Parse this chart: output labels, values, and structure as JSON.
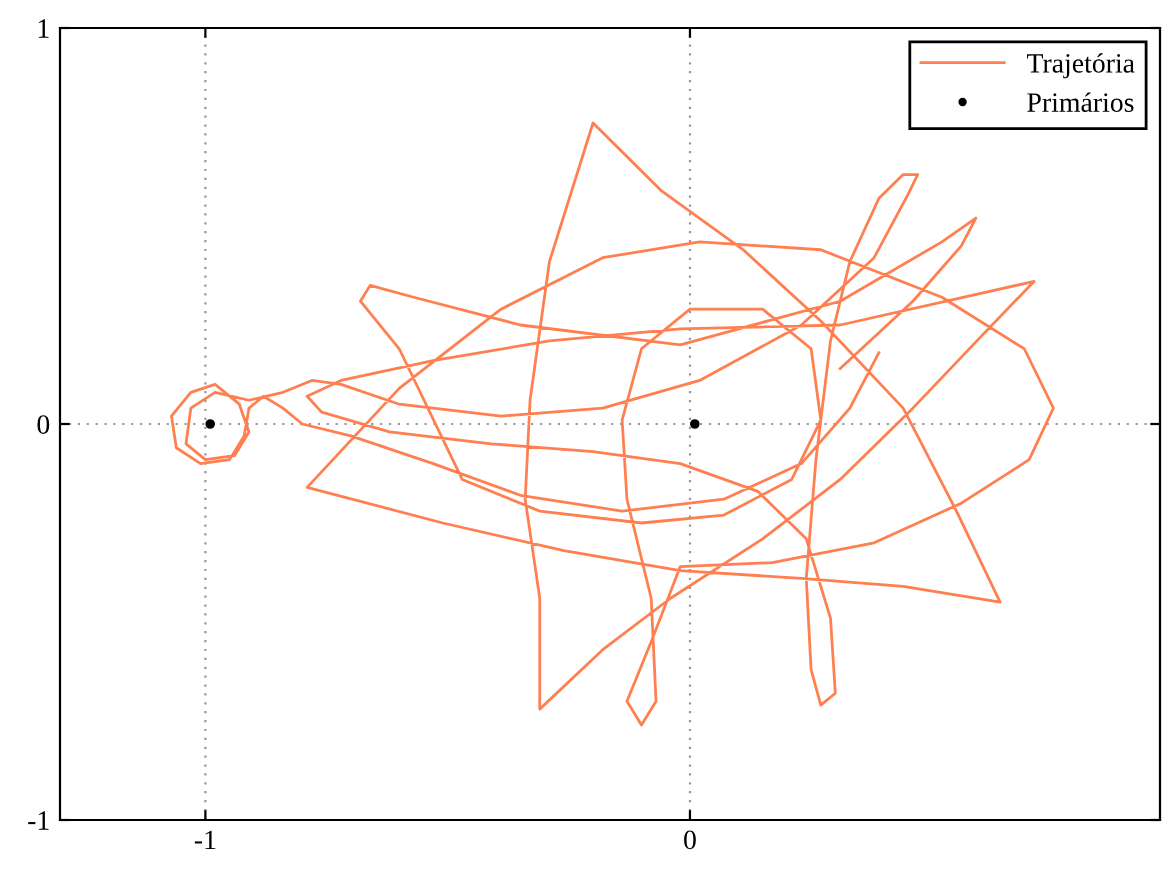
{
  "chart_data": {
    "type": "line",
    "xlim": [
      -1.3,
      0.97
    ],
    "ylim": [
      -1,
      1
    ],
    "xticks": [
      -1,
      0
    ],
    "yticks": [
      -1,
      0,
      1
    ],
    "grid": true,
    "legend": "top right",
    "series": [
      {
        "name": "Trajetória",
        "color": "#ff7f50",
        "marker": "none",
        "x": [
          0.39,
          0.33,
          0.23,
          0.07,
          -0.14,
          -0.35,
          -0.53,
          -0.7,
          -0.8,
          -0.84,
          -0.88,
          -0.91,
          -0.92,
          -0.95,
          -1.01,
          -1.06,
          -1.07,
          -1.03,
          -0.98,
          -0.93,
          -0.91,
          -0.94,
          -1.0,
          -1.04,
          -1.03,
          -0.98,
          -0.91,
          -0.84,
          -0.78,
          -0.72,
          -0.6,
          -0.39,
          -0.18,
          0.02,
          0.23,
          0.38,
          0.45,
          0.47,
          0.44,
          0.39,
          0.33,
          0.29,
          0.26,
          0.24,
          0.25,
          0.27,
          0.3,
          0.29,
          0.24,
          0.14,
          -0.02,
          -0.2,
          -0.41,
          -0.62,
          -0.76,
          -0.79,
          -0.72,
          -0.53,
          -0.29,
          -0.02,
          0.31,
          0.71,
          0.6,
          0.46,
          0.31,
          0.15,
          -0.04,
          -0.18,
          -0.31,
          -0.31,
          -0.34,
          -0.33,
          -0.29,
          -0.2,
          -0.06,
          0.11,
          0.27,
          0.44,
          0.55,
          0.64,
          0.44,
          0.23,
          -0.02,
          -0.26,
          -0.51,
          -0.79,
          -0.6,
          -0.39,
          -0.18,
          0.02,
          0.27,
          0.52,
          0.69,
          0.75,
          0.7,
          0.56,
          0.38,
          0.17,
          -0.02,
          -0.08,
          -0.13,
          -0.1,
          -0.07,
          -0.08,
          -0.13,
          -0.14,
          -0.1,
          0.0,
          0.15,
          0.25,
          0.27,
          0.21,
          0.07,
          -0.1,
          -0.31,
          -0.47,
          -0.6,
          -0.68,
          -0.66,
          -0.57,
          -0.35,
          -0.02,
          0.31,
          0.52,
          0.59,
          0.56,
          0.46,
          0.31
        ],
        "values": [
          0.18,
          0.04,
          -0.1,
          -0.19,
          -0.22,
          -0.18,
          -0.1,
          -0.03,
          0.0,
          0.04,
          0.07,
          0.04,
          -0.03,
          -0.09,
          -0.1,
          -0.06,
          0.02,
          0.08,
          0.1,
          0.05,
          -0.02,
          -0.08,
          -0.09,
          -0.05,
          0.04,
          0.08,
          0.06,
          0.08,
          0.11,
          0.1,
          0.05,
          0.02,
          0.04,
          0.11,
          0.25,
          0.42,
          0.58,
          0.63,
          0.63,
          0.57,
          0.41,
          0.21,
          -0.09,
          -0.39,
          -0.62,
          -0.71,
          -0.68,
          -0.49,
          -0.29,
          -0.17,
          -0.1,
          -0.07,
          -0.05,
          -0.02,
          0.03,
          0.07,
          0.11,
          0.16,
          0.21,
          0.24,
          0.25,
          0.36,
          0.22,
          0.04,
          -0.14,
          -0.29,
          -0.44,
          -0.57,
          -0.72,
          -0.44,
          -0.19,
          0.06,
          0.41,
          0.76,
          0.59,
          0.44,
          0.26,
          0.04,
          -0.22,
          -0.45,
          -0.41,
          -0.39,
          -0.37,
          -0.32,
          -0.25,
          -0.16,
          0.09,
          0.29,
          0.42,
          0.46,
          0.44,
          0.32,
          0.19,
          0.04,
          -0.09,
          -0.2,
          -0.3,
          -0.35,
          -0.36,
          -0.55,
          -0.7,
          -0.76,
          -0.7,
          -0.44,
          -0.19,
          0.01,
          0.19,
          0.29,
          0.29,
          0.19,
          0.01,
          -0.14,
          -0.23,
          -0.25,
          -0.22,
          -0.14,
          0.19,
          0.31,
          0.35,
          0.32,
          0.25,
          0.2,
          0.31,
          0.46,
          0.52,
          0.45,
          0.31,
          0.14
        ]
      },
      {
        "name": "Primários",
        "type": "scatter",
        "color": "#000000",
        "marker": "circle",
        "x": [
          -0.99,
          0.01
        ],
        "values": [
          0,
          0
        ]
      }
    ]
  }
}
